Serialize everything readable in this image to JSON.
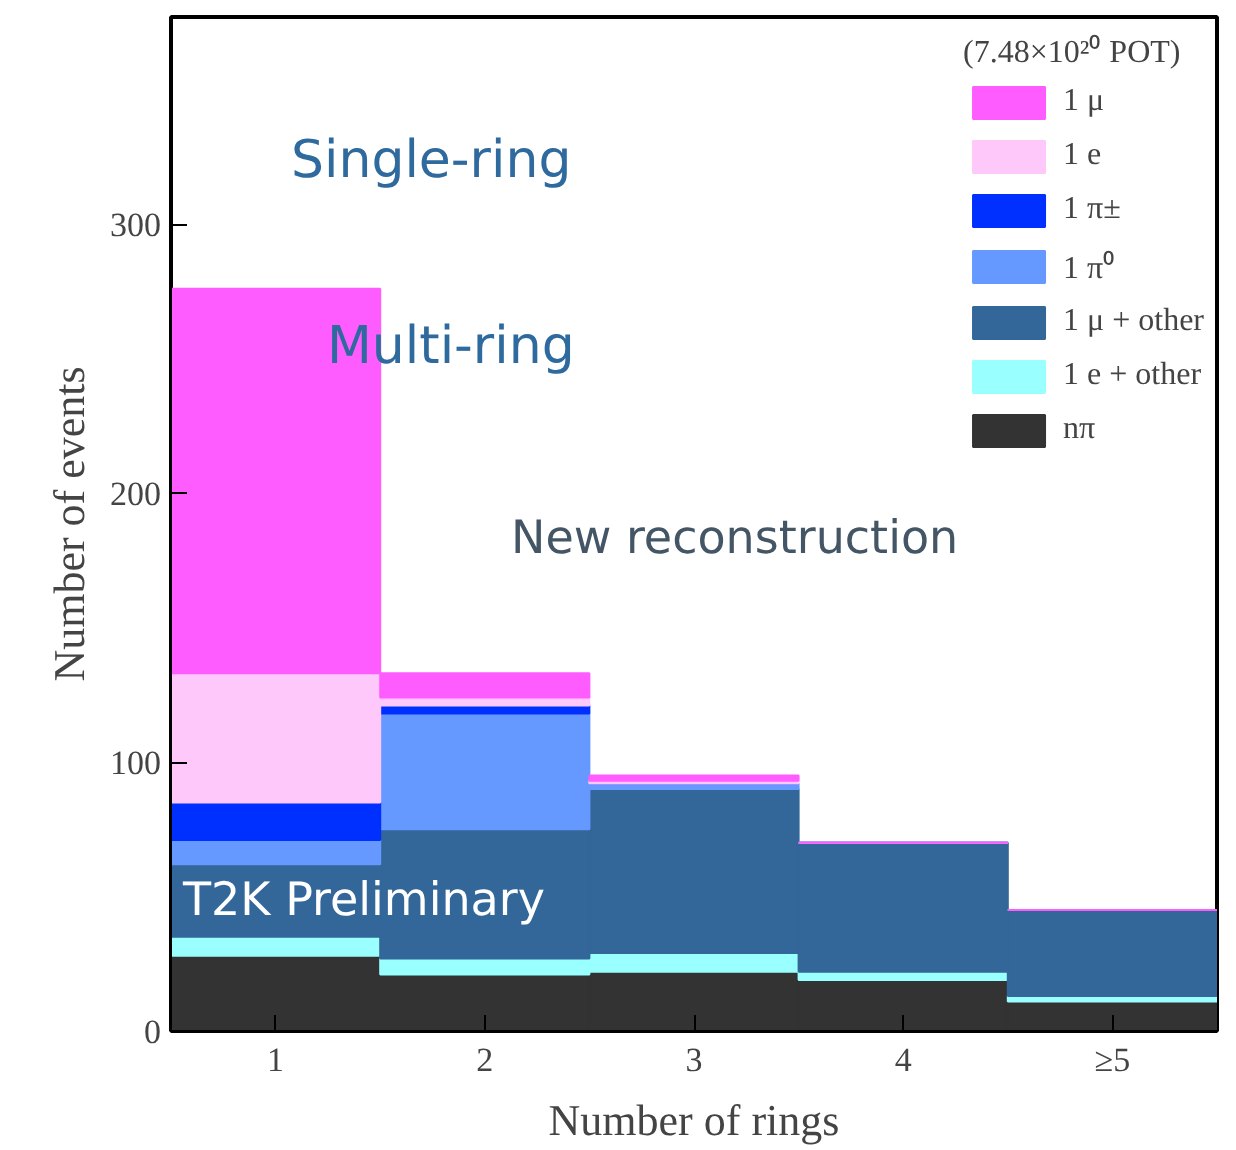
{
  "chart_data": {
    "type": "bar",
    "stacked": true,
    "xlabel": "Number of rings",
    "ylabel": "Number of events",
    "categories": [
      "1",
      "2",
      "3",
      "4",
      "≥5"
    ],
    "ylim": [
      0,
      377
    ],
    "yticks": [
      0,
      100,
      200,
      300
    ],
    "series": [
      {
        "name": "nπ",
        "color": "#333333",
        "values": [
          28,
          21,
          22,
          19,
          11
        ]
      },
      {
        "name": "1 e + other",
        "color": "#99ffff",
        "values": [
          7,
          6,
          7,
          3,
          2
        ]
      },
      {
        "name": "1 μ + other",
        "color": "#336699",
        "values": [
          27,
          48,
          61,
          48,
          32
        ]
      },
      {
        "name": "1 π⁰",
        "color": "#6699ff",
        "values": [
          9,
          43,
          2,
          0,
          0
        ]
      },
      {
        "name": "1 π±",
        "color": "#0030ff",
        "values": [
          14,
          3,
          0,
          0,
          0
        ]
      },
      {
        "name": "1 e",
        "color": "#ffc8fa",
        "values": [
          48,
          3,
          1,
          0,
          0
        ]
      },
      {
        "name": "1 μ",
        "color": "#ff5cff",
        "values": [
          143,
          9,
          2,
          0,
          0
        ]
      }
    ],
    "legend": "top right",
    "legend_title": "(7.48×10²⁰ POT)",
    "grid": false,
    "annotations": [
      "Single-ring",
      "Multi-ring",
      "New reconstruction",
      "T2K Preliminary"
    ]
  }
}
